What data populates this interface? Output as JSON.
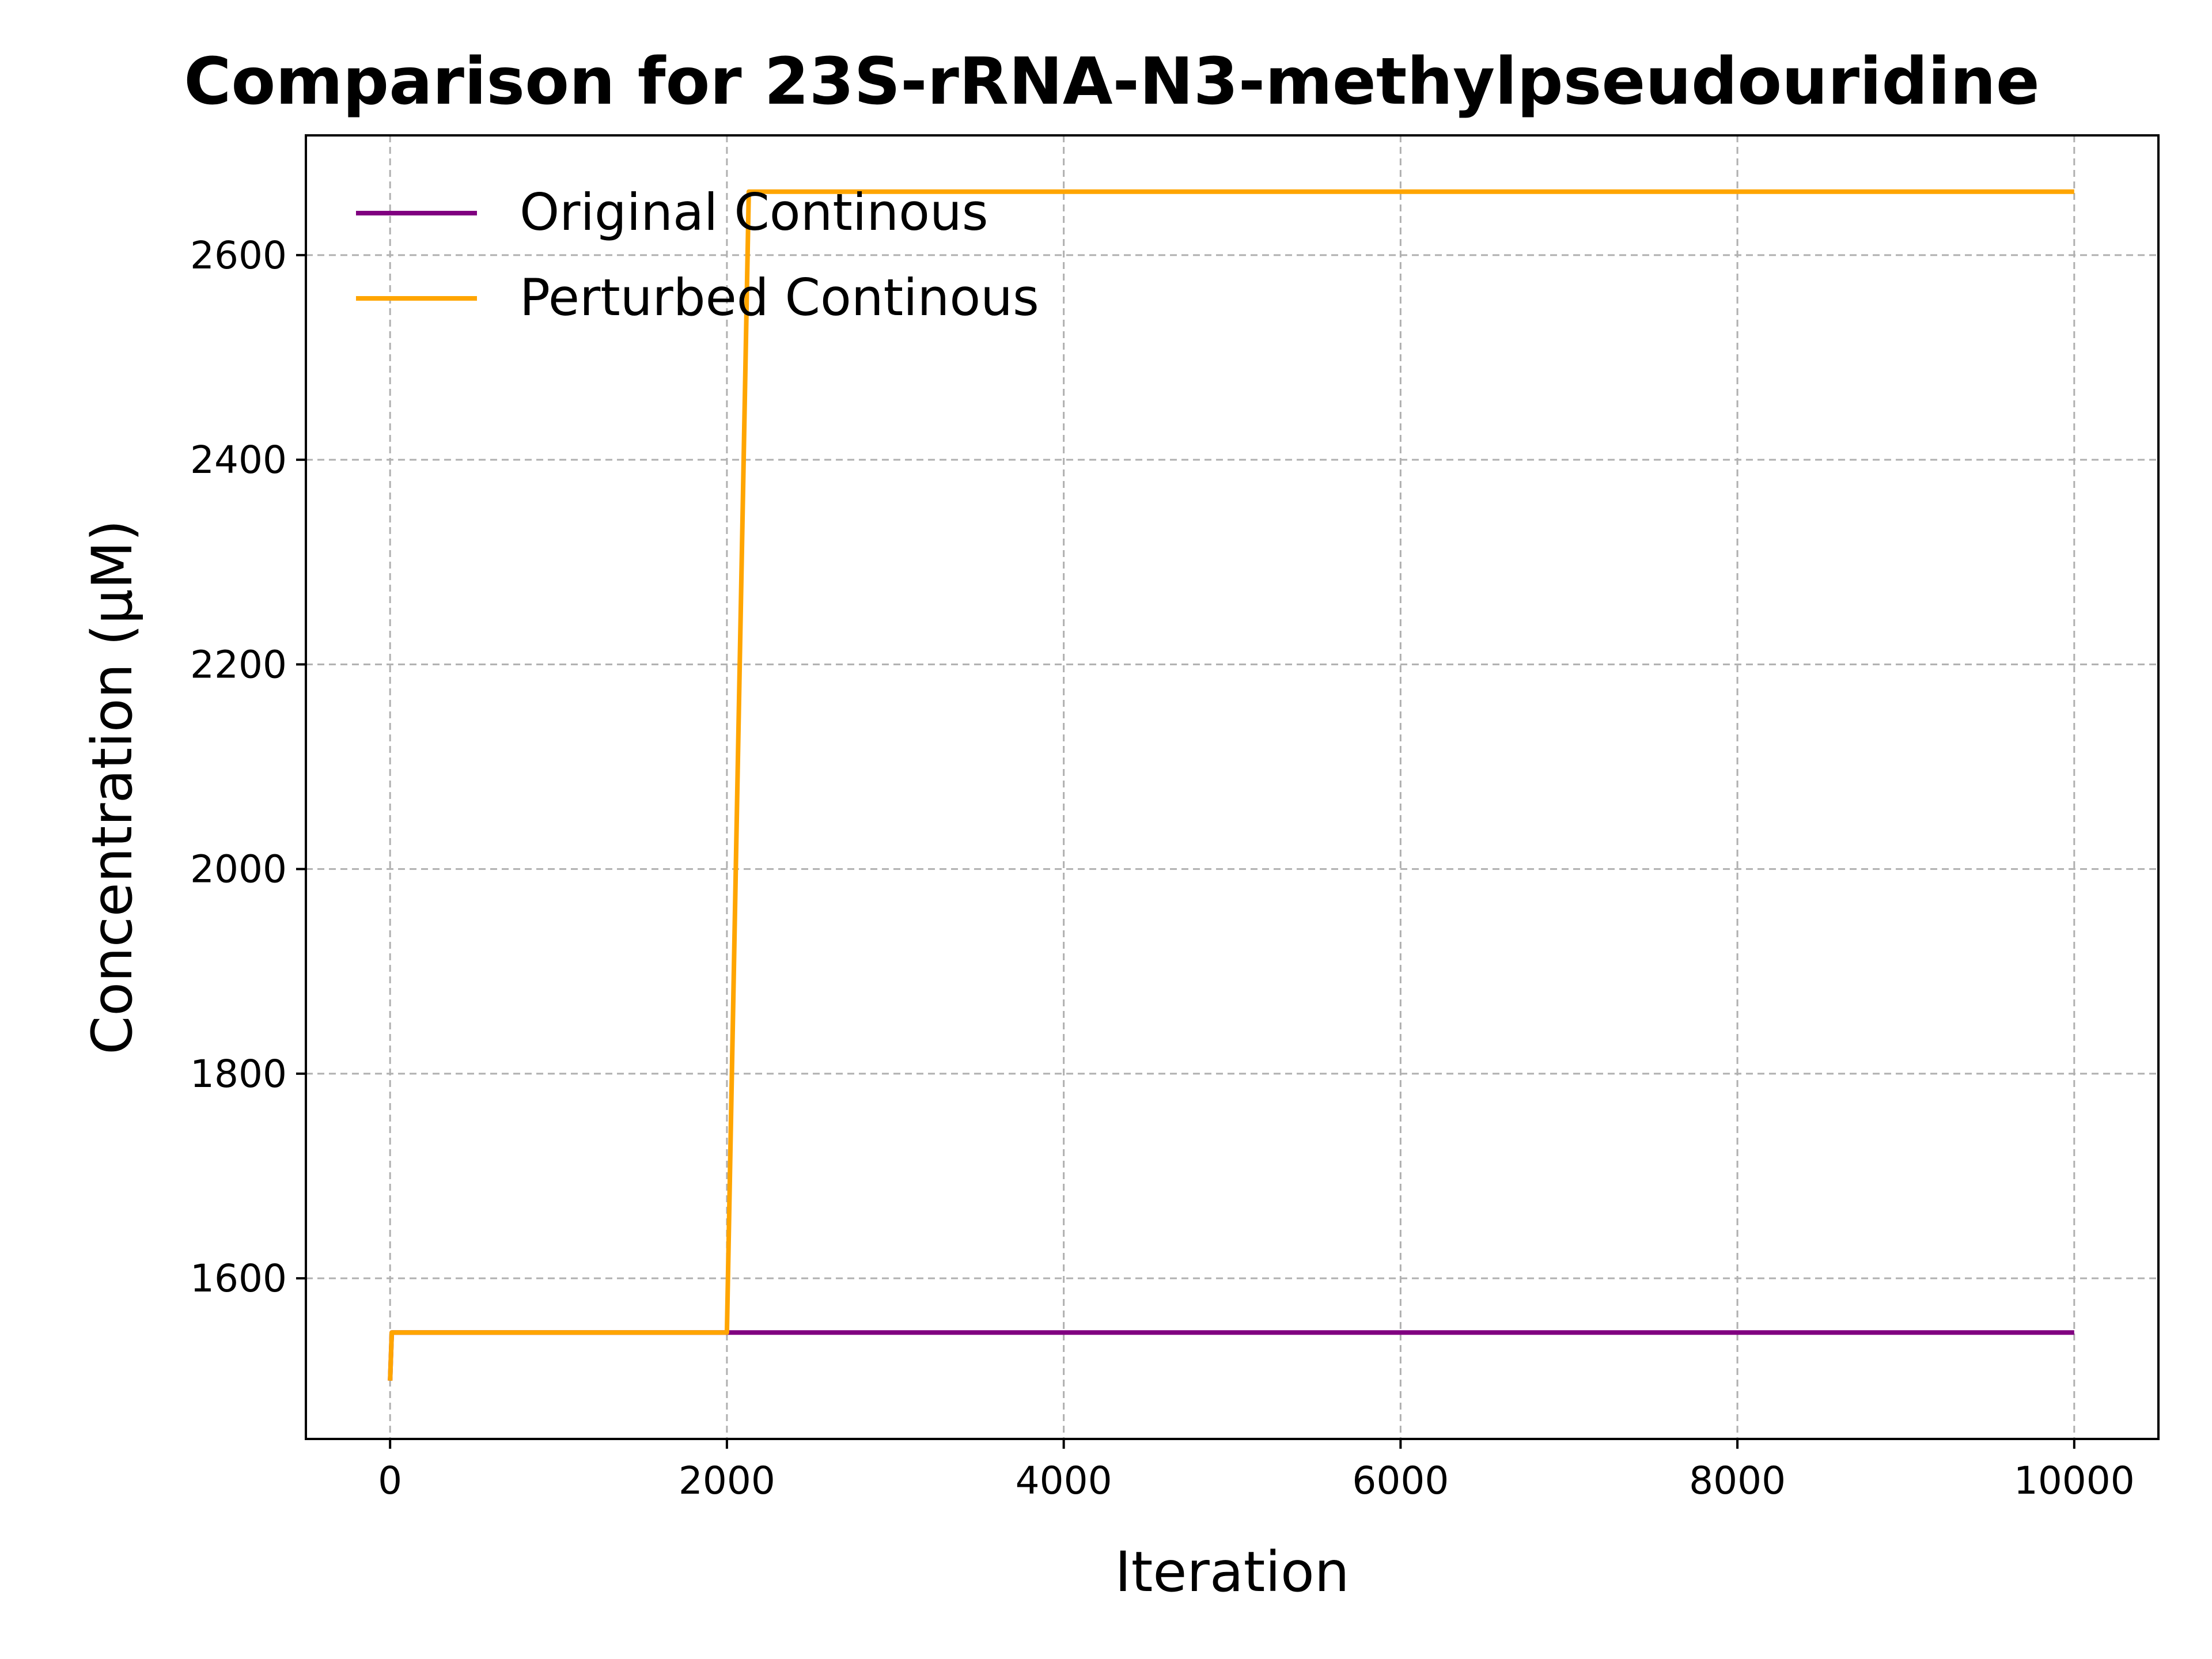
{
  "chart_data": {
    "type": "line",
    "title": "Comparison for 23S-rRNA-N3-methylpseudouridine",
    "xlabel": "Iteration",
    "ylabel": "Concentration (μM)",
    "xlim": [
      -500,
      10500
    ],
    "ylim": [
      1443,
      2717
    ],
    "x_ticks": [
      0,
      2000,
      4000,
      6000,
      8000,
      10000
    ],
    "y_ticks": [
      1600,
      1800,
      2000,
      2200,
      2400,
      2600
    ],
    "grid": true,
    "legend_position": "top-left",
    "series": [
      {
        "name": "Original Continous",
        "color": "#800080",
        "x": [
          0,
          10,
          2000,
          10000
        ],
        "y": [
          1500,
          1547,
          1547,
          1547
        ]
      },
      {
        "name": "Perturbed Continous",
        "color": "#FFA500",
        "x": [
          0,
          10,
          2000,
          2130,
          10000
        ],
        "y": [
          1500,
          1547,
          1547,
          2662,
          2662
        ]
      }
    ]
  }
}
